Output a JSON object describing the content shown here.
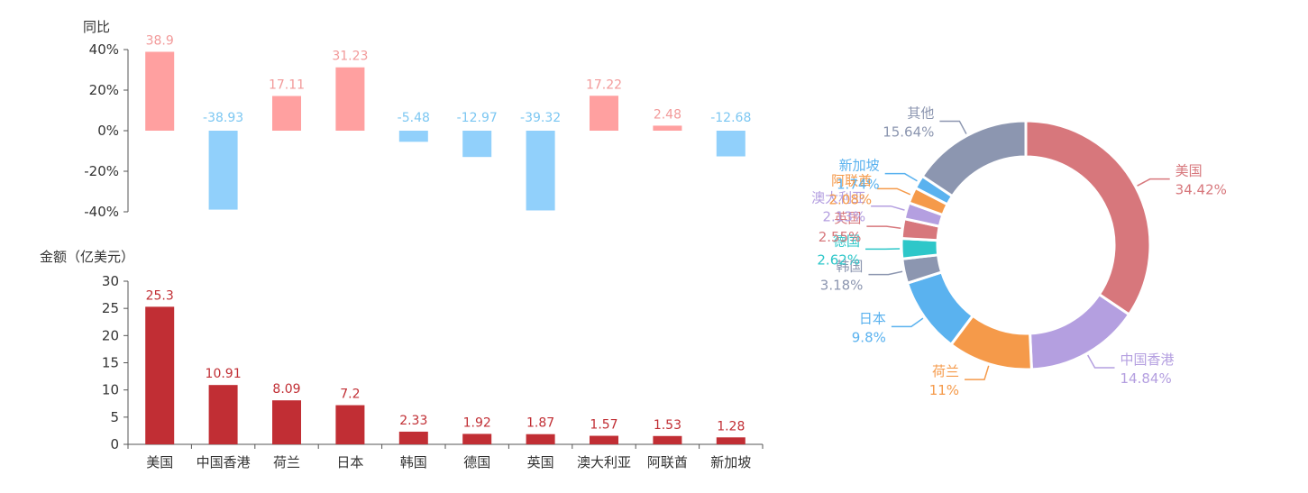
{
  "chart_data": [
    {
      "type": "bar",
      "ylabel": "同比",
      "categories": [
        "美国",
        "中国香港",
        "荷兰",
        "日本",
        "韩国",
        "德国",
        "英国",
        "澳大利亚",
        "阿联酋",
        "新加坡"
      ],
      "values": [
        38.9,
        -38.93,
        17.11,
        31.23,
        -5.48,
        -12.97,
        -39.32,
        17.22,
        2.48,
        -12.68
      ],
      "value_labels": [
        "38.9",
        "-38.93",
        "17.11",
        "31.23",
        "-5.48",
        "-12.97",
        "-39.32",
        "17.22",
        "2.48",
        "-12.68"
      ],
      "ylim": [
        -40,
        40
      ],
      "yticks": [
        40,
        20,
        0,
        -20,
        -40
      ],
      "ytick_labels": [
        "40%",
        "20%",
        "0%",
        "-20%",
        "-40%"
      ],
      "colors": {
        "positive": "#ffa0a0",
        "negative": "#91d0fb",
        "positive_label": "#f29a9a",
        "negative_label": "#7cc7f2"
      }
    },
    {
      "type": "bar",
      "ylabel": "金额（亿美元）",
      "categories": [
        "美国",
        "中国香港",
        "荷兰",
        "日本",
        "韩国",
        "德国",
        "英国",
        "澳大利亚",
        "阿联酋",
        "新加坡"
      ],
      "values": [
        25.3,
        10.91,
        8.09,
        7.2,
        2.33,
        1.92,
        1.87,
        1.57,
        1.53,
        1.28
      ],
      "value_labels": [
        "25.3",
        "10.91",
        "8.09",
        "7.2",
        "2.33",
        "1.92",
        "1.87",
        "1.57",
        "1.53",
        "1.28"
      ],
      "ylim": [
        0,
        30
      ],
      "yticks": [
        30,
        25,
        20,
        15,
        10,
        5,
        0
      ],
      "ytick_labels": [
        "30",
        "25",
        "20",
        "15",
        "10",
        "5",
        "0"
      ],
      "colors": {
        "bar": "#c12e34",
        "label": "#c12e34"
      }
    },
    {
      "type": "pie",
      "donut": true,
      "slices": [
        {
          "label": "美国",
          "percent_label": "34.42%",
          "value": 34.42,
          "color": "#d7777c"
        },
        {
          "label": "中国香港",
          "percent_label": "14.84%",
          "value": 14.84,
          "color": "#b49fe0"
        },
        {
          "label": "荷兰",
          "percent_label": "11%",
          "value": 11,
          "color": "#f59a4a"
        },
        {
          "label": "日本",
          "percent_label": "9.8%",
          "value": 9.8,
          "color": "#5ab2ef"
        },
        {
          "label": "韩国",
          "percent_label": "3.18%",
          "value": 3.18,
          "color": "#8c96b0"
        },
        {
          "label": "德国",
          "percent_label": "2.62%",
          "value": 2.62,
          "color": "#2ec7c9"
        },
        {
          "label": "英国",
          "percent_label": "2.55%",
          "value": 2.55,
          "color": "#d7777c"
        },
        {
          "label": "澳大利亚",
          "percent_label": "2.13%",
          "value": 2.13,
          "color": "#b49fe0"
        },
        {
          "label": "阿联酋",
          "percent_label": "2.08%",
          "value": 2.08,
          "color": "#f59a4a"
        },
        {
          "label": "新加坡",
          "percent_label": "1.74%",
          "value": 1.74,
          "color": "#5ab2ef"
        },
        {
          "label": "其他",
          "percent_label": "15.64%",
          "value": 15.64,
          "color": "#8c96b0"
        }
      ]
    }
  ]
}
